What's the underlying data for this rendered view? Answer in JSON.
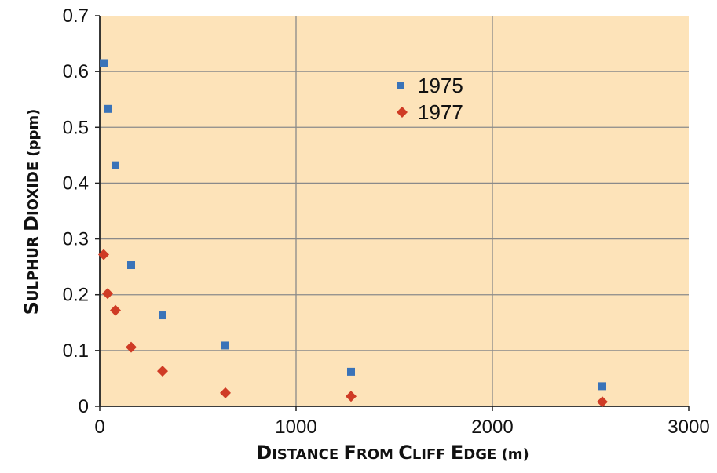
{
  "chart_data": {
    "type": "scatter",
    "title": "",
    "xlabel": "Distance from Cliff Edge (m)",
    "ylabel": "Sulphur Dioxide (ppm)",
    "xlim": [
      0,
      3000
    ],
    "ylim": [
      0,
      0.7
    ],
    "x_ticks": [
      "0",
      "1000",
      "2000",
      "3000"
    ],
    "y_ticks": [
      "0",
      "0.1",
      "0.2",
      "0.3",
      "0.4",
      "0.5",
      "0.6",
      "0.7"
    ],
    "grid": true,
    "legend": "top-center",
    "background_color": "#fde3b9",
    "series": [
      {
        "name": "1975",
        "marker": "square",
        "color": "#3a73b8",
        "points": [
          {
            "x": 20,
            "y": 0.615
          },
          {
            "x": 40,
            "y": 0.533
          },
          {
            "x": 80,
            "y": 0.432
          },
          {
            "x": 160,
            "y": 0.253
          },
          {
            "x": 320,
            "y": 0.163
          },
          {
            "x": 640,
            "y": 0.109
          },
          {
            "x": 1280,
            "y": 0.062
          },
          {
            "x": 2560,
            "y": 0.036
          }
        ]
      },
      {
        "name": "1977",
        "marker": "diamond",
        "color": "#cf3b25",
        "points": [
          {
            "x": 20,
            "y": 0.272
          },
          {
            "x": 40,
            "y": 0.202
          },
          {
            "x": 80,
            "y": 0.172
          },
          {
            "x": 160,
            "y": 0.106
          },
          {
            "x": 320,
            "y": 0.063
          },
          {
            "x": 640,
            "y": 0.024
          },
          {
            "x": 1280,
            "y": 0.018
          },
          {
            "x": 2560,
            "y": 0.008
          }
        ]
      }
    ]
  }
}
